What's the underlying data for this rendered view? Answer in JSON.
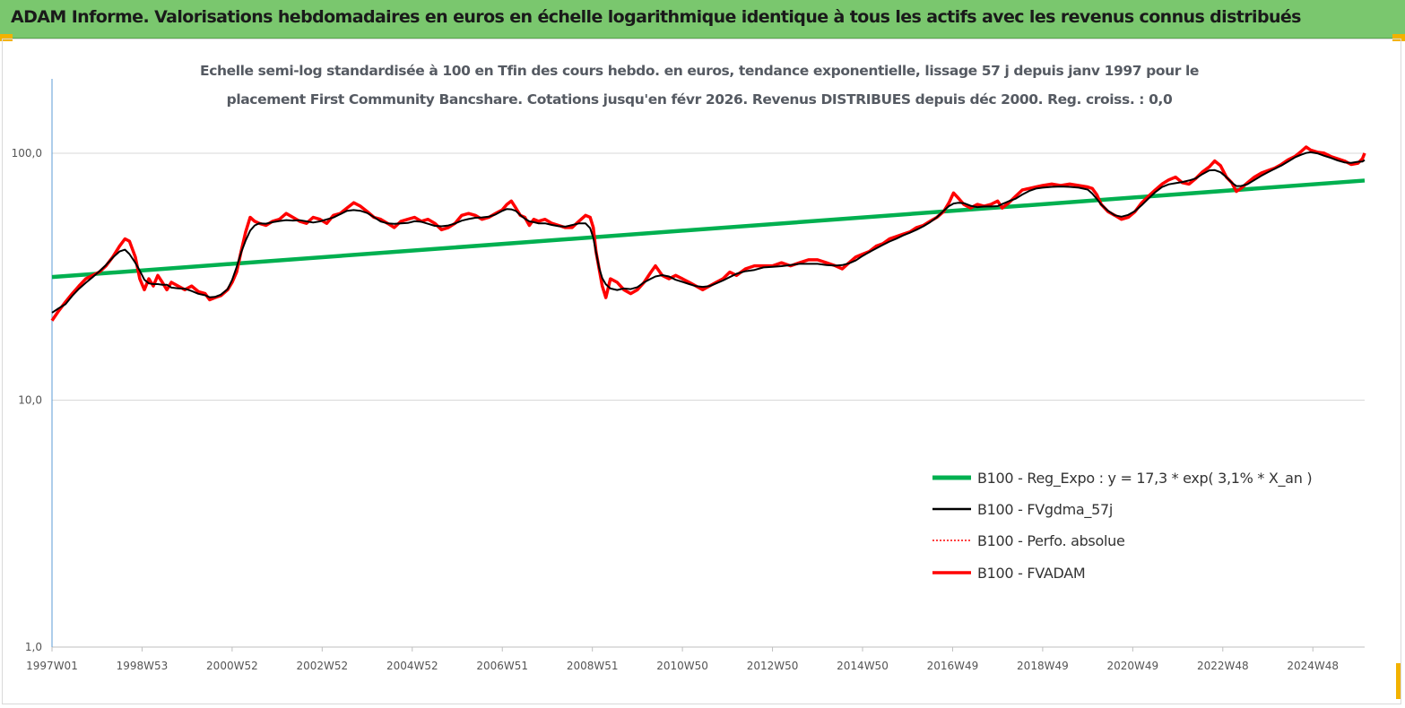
{
  "header": {
    "title": "ADAM Informe. Valorisations hebdomadaires en euros en échelle logarithmique identique à tous les actifs avec les revenus connus distribués"
  },
  "colors": {
    "banner": "#7ac76e",
    "accent_corner": "#f2b200",
    "reg_expo": "#00b050",
    "fvgdma": "#000000",
    "perfo": "#ff0000",
    "fvadam": "#ff0000"
  },
  "chart_data": {
    "type": "line",
    "title_lines": [
      "Echelle semi-log standardisée à 100 en Tfin des cours hebdo. en euros, tendance exponentielle, lissage 57 j depuis janv 1997 pour le",
      "placement First Community Bancshare. Cotations jusqu'en févr 2026. Revenus DISTRIBUES depuis déc 2000. Reg. croiss. : 0,0"
    ],
    "y_scale": "log",
    "ylim": [
      1,
      200
    ],
    "xlim": [
      1997.0,
      2026.15
    ],
    "y_ticks": [
      {
        "value": 1,
        "label": "1,0"
      },
      {
        "value": 10,
        "label": "10,0"
      },
      {
        "value": 100,
        "label": "100,0"
      }
    ],
    "x_ticks": [
      {
        "value": 1997.0,
        "label": "1997W01"
      },
      {
        "value": 1999.0,
        "label": "1998W53"
      },
      {
        "value": 2001.0,
        "label": "2000W52"
      },
      {
        "value": 2003.0,
        "label": "2002W52"
      },
      {
        "value": 2005.0,
        "label": "2004W52"
      },
      {
        "value": 2007.0,
        "label": "2006W51"
      },
      {
        "value": 2009.0,
        "label": "2008W51"
      },
      {
        "value": 2011.0,
        "label": "2010W50"
      },
      {
        "value": 2013.0,
        "label": "2012W50"
      },
      {
        "value": 2015.0,
        "label": "2014W50"
      },
      {
        "value": 2017.0,
        "label": "2016W49"
      },
      {
        "value": 2019.0,
        "label": "2018W49"
      },
      {
        "value": 2021.0,
        "label": "2020W49"
      },
      {
        "value": 2023.0,
        "label": "2022W48"
      },
      {
        "value": 2025.0,
        "label": "2024W48"
      }
    ],
    "grid": "horizontal",
    "legend_position": "bottom-right",
    "series": [
      {
        "name": "B100 - Reg_Expo : y = 17,3 *  exp( 3,1% *  X_an )",
        "kind": "regression",
        "points": [
          [
            1997.0,
            31.5
          ],
          [
            2026.15,
            77.5
          ]
        ]
      },
      {
        "name": "B100 - FVgdma_57j",
        "kind": "smoothed",
        "points": []
      },
      {
        "name": "B100 - Perfo. absolue",
        "kind": "dotted",
        "points": []
      },
      {
        "name": "B100 - FVADAM",
        "kind": "price",
        "points": [
          [
            1997.0,
            21
          ],
          [
            1997.15,
            23
          ],
          [
            1997.3,
            25
          ],
          [
            1997.45,
            27
          ],
          [
            1997.6,
            29
          ],
          [
            1997.75,
            31
          ],
          [
            1997.9,
            32
          ],
          [
            1998.05,
            33
          ],
          [
            1998.2,
            35
          ],
          [
            1998.35,
            38
          ],
          [
            1998.5,
            42
          ],
          [
            1998.62,
            45
          ],
          [
            1998.72,
            44
          ],
          [
            1998.85,
            38
          ],
          [
            1998.95,
            31
          ],
          [
            1999.05,
            28
          ],
          [
            1999.15,
            31
          ],
          [
            1999.25,
            29
          ],
          [
            1999.35,
            32
          ],
          [
            1999.45,
            30
          ],
          [
            1999.55,
            28
          ],
          [
            1999.65,
            30
          ],
          [
            1999.8,
            29
          ],
          [
            1999.95,
            28
          ],
          [
            2000.1,
            29
          ],
          [
            2000.25,
            27.5
          ],
          [
            2000.4,
            27
          ],
          [
            2000.5,
            25.5
          ],
          [
            2000.62,
            26
          ],
          [
            2000.75,
            26.5
          ],
          [
            2000.9,
            28
          ],
          [
            2001.0,
            30
          ],
          [
            2001.1,
            33
          ],
          [
            2001.2,
            40
          ],
          [
            2001.3,
            48
          ],
          [
            2001.4,
            55
          ],
          [
            2001.5,
            53
          ],
          [
            2001.6,
            52
          ],
          [
            2001.75,
            51
          ],
          [
            2001.9,
            53
          ],
          [
            2002.05,
            54
          ],
          [
            2002.2,
            57
          ],
          [
            2002.35,
            55
          ],
          [
            2002.5,
            53
          ],
          [
            2002.65,
            52
          ],
          [
            2002.8,
            55
          ],
          [
            2002.95,
            54
          ],
          [
            2003.1,
            52
          ],
          [
            2003.25,
            56
          ],
          [
            2003.4,
            57
          ],
          [
            2003.55,
            60
          ],
          [
            2003.7,
            63
          ],
          [
            2003.85,
            61
          ],
          [
            2004.0,
            58
          ],
          [
            2004.15,
            55
          ],
          [
            2004.3,
            54
          ],
          [
            2004.45,
            52
          ],
          [
            2004.6,
            50
          ],
          [
            2004.75,
            53
          ],
          [
            2004.9,
            54
          ],
          [
            2005.05,
            55
          ],
          [
            2005.2,
            53
          ],
          [
            2005.35,
            54
          ],
          [
            2005.5,
            52
          ],
          [
            2005.65,
            49
          ],
          [
            2005.8,
            50
          ],
          [
            2005.95,
            52
          ],
          [
            2006.1,
            56
          ],
          [
            2006.25,
            57
          ],
          [
            2006.4,
            56
          ],
          [
            2006.55,
            54
          ],
          [
            2006.7,
            55
          ],
          [
            2006.85,
            57
          ],
          [
            2007.0,
            59
          ],
          [
            2007.1,
            62
          ],
          [
            2007.2,
            64
          ],
          [
            2007.3,
            60
          ],
          [
            2007.4,
            56
          ],
          [
            2007.5,
            55
          ],
          [
            2007.6,
            51
          ],
          [
            2007.7,
            54
          ],
          [
            2007.8,
            53
          ],
          [
            2007.95,
            54
          ],
          [
            2008.1,
            52
          ],
          [
            2008.25,
            51
          ],
          [
            2008.4,
            50
          ],
          [
            2008.55,
            50
          ],
          [
            2008.7,
            53
          ],
          [
            2008.85,
            56
          ],
          [
            2008.95,
            55
          ],
          [
            2009.02,
            50
          ],
          [
            2009.08,
            40
          ],
          [
            2009.15,
            34
          ],
          [
            2009.22,
            29
          ],
          [
            2009.3,
            26
          ],
          [
            2009.4,
            31
          ],
          [
            2009.55,
            30
          ],
          [
            2009.7,
            28
          ],
          [
            2009.85,
            27
          ],
          [
            2010.0,
            28
          ],
          [
            2010.15,
            30
          ],
          [
            2010.3,
            33
          ],
          [
            2010.4,
            35
          ],
          [
            2010.55,
            32
          ],
          [
            2010.7,
            31
          ],
          [
            2010.85,
            32
          ],
          [
            2011.0,
            31
          ],
          [
            2011.15,
            30
          ],
          [
            2011.3,
            29
          ],
          [
            2011.45,
            28
          ],
          [
            2011.6,
            29
          ],
          [
            2011.75,
            30
          ],
          [
            2011.9,
            31
          ],
          [
            2012.05,
            33
          ],
          [
            2012.2,
            32
          ],
          [
            2012.4,
            34
          ],
          [
            2012.6,
            35
          ],
          [
            2012.8,
            35
          ],
          [
            2013.0,
            35
          ],
          [
            2013.2,
            36
          ],
          [
            2013.4,
            35
          ],
          [
            2013.6,
            36
          ],
          [
            2013.8,
            37
          ],
          [
            2014.0,
            37
          ],
          [
            2014.2,
            36
          ],
          [
            2014.4,
            35
          ],
          [
            2014.55,
            34
          ],
          [
            2014.7,
            36
          ],
          [
            2014.85,
            38
          ],
          [
            2015.0,
            39
          ],
          [
            2015.15,
            40
          ],
          [
            2015.3,
            42
          ],
          [
            2015.45,
            43
          ],
          [
            2015.6,
            45
          ],
          [
            2015.75,
            46
          ],
          [
            2015.9,
            47
          ],
          [
            2016.05,
            48
          ],
          [
            2016.2,
            50
          ],
          [
            2016.35,
            51
          ],
          [
            2016.5,
            53
          ],
          [
            2016.65,
            55
          ],
          [
            2016.8,
            58
          ],
          [
            2016.92,
            63
          ],
          [
            2017.02,
            69
          ],
          [
            2017.12,
            66
          ],
          [
            2017.25,
            62
          ],
          [
            2017.4,
            60
          ],
          [
            2017.55,
            62
          ],
          [
            2017.7,
            61
          ],
          [
            2017.85,
            62
          ],
          [
            2018.0,
            64
          ],
          [
            2018.1,
            60
          ],
          [
            2018.25,
            63
          ],
          [
            2018.4,
            67
          ],
          [
            2018.55,
            71
          ],
          [
            2018.7,
            72
          ],
          [
            2018.85,
            73
          ],
          [
            2019.0,
            74
          ],
          [
            2019.2,
            75
          ],
          [
            2019.4,
            74
          ],
          [
            2019.6,
            75
          ],
          [
            2019.8,
            74
          ],
          [
            2020.0,
            73
          ],
          [
            2020.1,
            72
          ],
          [
            2020.2,
            68
          ],
          [
            2020.3,
            62
          ],
          [
            2020.45,
            58
          ],
          [
            2020.6,
            56
          ],
          [
            2020.75,
            54
          ],
          [
            2020.9,
            55
          ],
          [
            2021.05,
            58
          ],
          [
            2021.2,
            63
          ],
          [
            2021.35,
            67
          ],
          [
            2021.5,
            71
          ],
          [
            2021.65,
            75
          ],
          [
            2021.8,
            78
          ],
          [
            2021.95,
            80
          ],
          [
            2022.1,
            76
          ],
          [
            2022.25,
            75
          ],
          [
            2022.4,
            79
          ],
          [
            2022.55,
            84
          ],
          [
            2022.7,
            88
          ],
          [
            2022.82,
            93
          ],
          [
            2022.95,
            89
          ],
          [
            2023.08,
            80
          ],
          [
            2023.2,
            76
          ],
          [
            2023.3,
            70
          ],
          [
            2023.4,
            72
          ],
          [
            2023.55,
            76
          ],
          [
            2023.7,
            80
          ],
          [
            2023.85,
            83
          ],
          [
            2024.0,
            85
          ],
          [
            2024.15,
            87
          ],
          [
            2024.3,
            90
          ],
          [
            2024.45,
            94
          ],
          [
            2024.6,
            97
          ],
          [
            2024.75,
            102
          ],
          [
            2024.85,
            106
          ],
          [
            2024.95,
            103
          ],
          [
            2025.1,
            101
          ],
          [
            2025.25,
            100
          ],
          [
            2025.4,
            97
          ],
          [
            2025.55,
            95
          ],
          [
            2025.7,
            93
          ],
          [
            2025.85,
            90
          ],
          [
            2026.0,
            91
          ],
          [
            2026.1,
            95
          ],
          [
            2026.15,
            100
          ]
        ]
      }
    ]
  }
}
